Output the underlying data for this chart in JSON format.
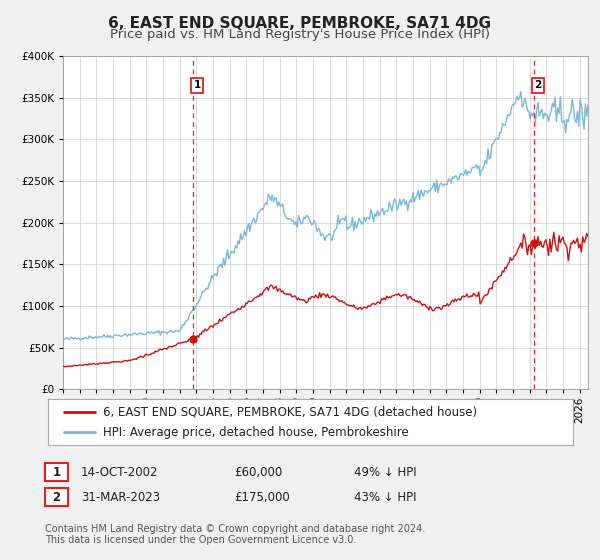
{
  "title": "6, EAST END SQUARE, PEMBROKE, SA71 4DG",
  "subtitle": "Price paid vs. HM Land Registry's House Price Index (HPI)",
  "ylim": [
    0,
    400000
  ],
  "yticks": [
    0,
    50000,
    100000,
    150000,
    200000,
    250000,
    300000,
    350000,
    400000
  ],
  "xlim_start": 1995.0,
  "xlim_end": 2026.5,
  "hpi_color": "#7ab8d9",
  "price_color": "#cc1111",
  "vline_color": "#dd2222",
  "background_color": "#f0f0f0",
  "plot_bg_color": "#ffffff",
  "grid_color": "#cccccc",
  "marker1_x": 2002.79,
  "marker1_y": 60000,
  "marker2_x": 2023.25,
  "marker2_y": 175000,
  "annotation1_label": "1",
  "annotation2_label": "2",
  "legend_label_price": "6, EAST END SQUARE, PEMBROKE, SA71 4DG (detached house)",
  "legend_label_hpi": "HPI: Average price, detached house, Pembrokeshire",
  "table_rows": [
    [
      "1",
      "14-OCT-2002",
      "£60,000",
      "49% ↓ HPI"
    ],
    [
      "2",
      "31-MAR-2023",
      "£175,000",
      "43% ↓ HPI"
    ]
  ],
  "footer_text": "Contains HM Land Registry data © Crown copyright and database right 2024.\nThis data is licensed under the Open Government Licence v3.0.",
  "title_fontsize": 11,
  "subtitle_fontsize": 9.5,
  "tick_fontsize": 7.5,
  "legend_fontsize": 8.5,
  "table_fontsize": 8.5,
  "footer_fontsize": 7
}
